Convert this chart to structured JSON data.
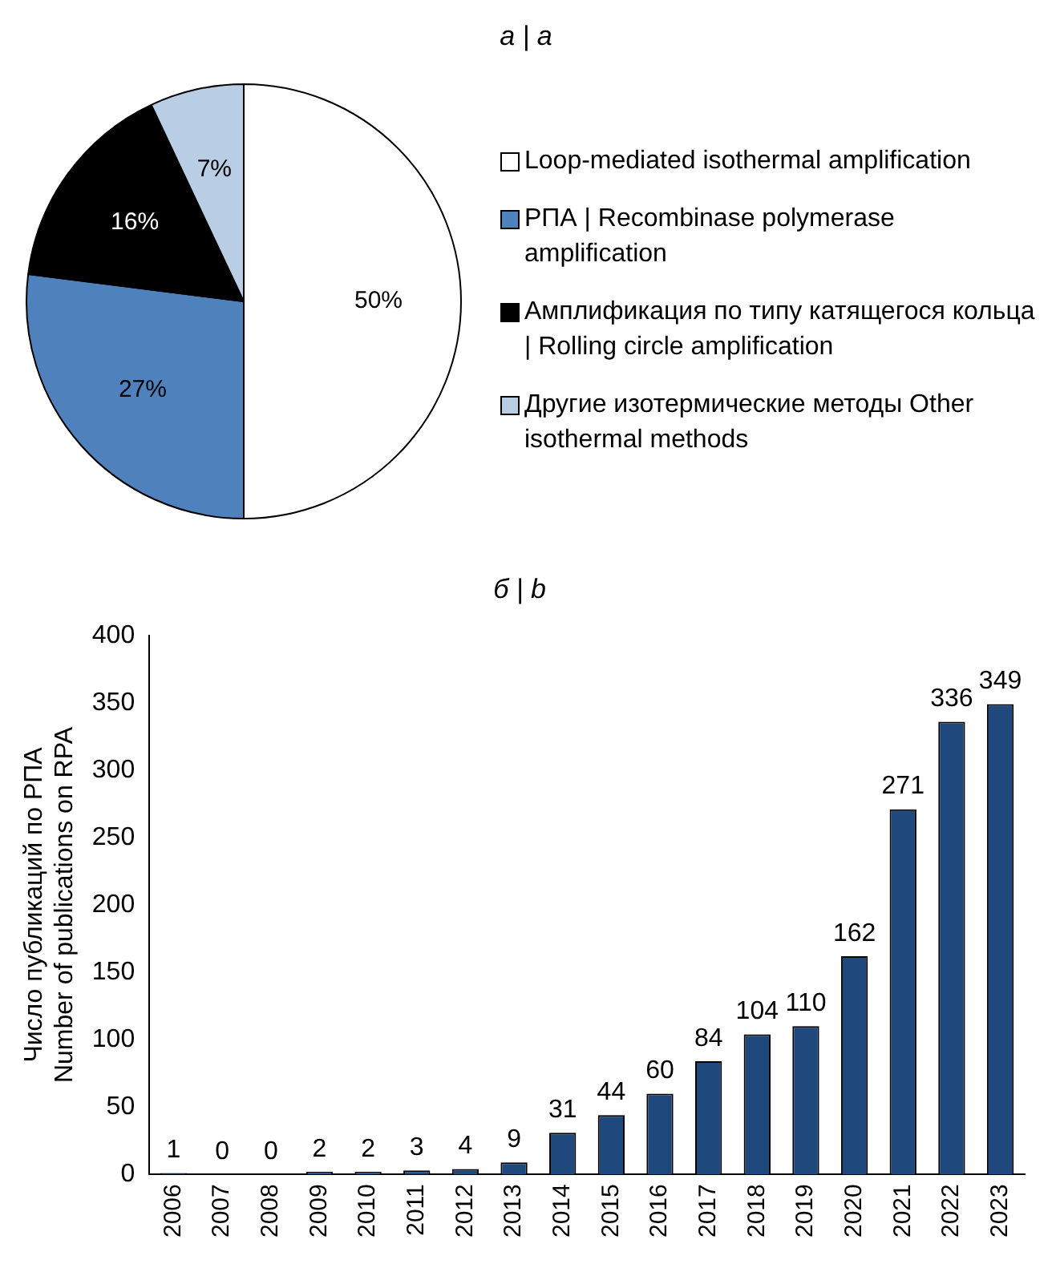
{
  "chart_data": [
    {
      "type": "pie",
      "title": "а | a",
      "categories": [
        "Loop-mediated isothermal amplification",
        "РПА | Recombinase polymerase amplification",
        "Амплификация по типу катящегося кольца | Rolling circle amplification",
        "Другие изотермические методы Other isothermal methods"
      ],
      "values": [
        50,
        27,
        16,
        7
      ],
      "colors": [
        "#ffffff",
        "#4f81bd",
        "#000000",
        "#b9cde5"
      ],
      "value_labels": [
        "50%",
        "27%",
        "16%",
        "7%"
      ],
      "legend": "right"
    },
    {
      "type": "bar",
      "title": "б | b",
      "ylabel": "Число публикаций по РПА\nNumber of publications on RPA",
      "categories": [
        "2006",
        "2007",
        "2008",
        "2009",
        "2010",
        "2011",
        "2012",
        "2013",
        "2014",
        "2015",
        "2016",
        "2017",
        "2018",
        "2019",
        "2020",
        "2021",
        "2022",
        "2023"
      ],
      "values": [
        1,
        0,
        0,
        2,
        2,
        3,
        4,
        9,
        31,
        44,
        60,
        84,
        104,
        110,
        162,
        271,
        336,
        349
      ],
      "color": "#1f497d",
      "ylim": [
        0,
        400
      ],
      "yticks": [
        0,
        50,
        100,
        150,
        200,
        250,
        300,
        350,
        400
      ],
      "data_labels": true,
      "grid": false,
      "legend": false
    }
  ]
}
